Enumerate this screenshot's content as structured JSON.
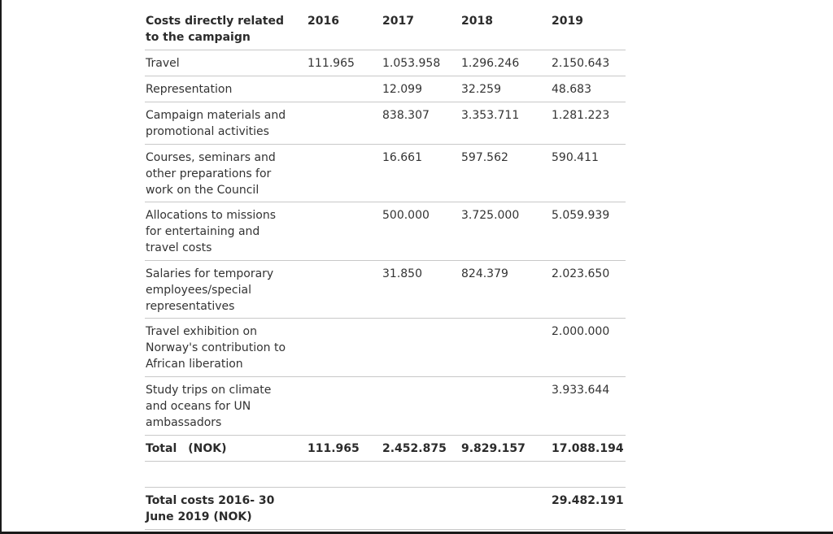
{
  "table": {
    "header": {
      "label": "Costs directly related to the campaign",
      "years": [
        "2016",
        "2017",
        "2018",
        "2019"
      ]
    },
    "rows": [
      {
        "label": "Travel",
        "v2016": "111.965",
        "v2017": "1.053.958",
        "v2018": "1.296.246",
        "v2019": "2.150.643"
      },
      {
        "label": "Representation",
        "v2016": "",
        "v2017": "12.099",
        "v2018": "32.259",
        "v2019": "48.683"
      },
      {
        "label": "Campaign materials and promotional activities",
        "v2016": "",
        "v2017": "838.307",
        "v2018": "3.353.711",
        "v2019": "1.281.223"
      },
      {
        "label": "Courses, seminars and other preparations for work on the Council",
        "v2016": "",
        "v2017": "16.661",
        "v2018": "597.562",
        "v2019": "590.411"
      },
      {
        "label": "Allocations to missions for entertaining and travel costs",
        "v2016": "",
        "v2017": "500.000",
        "v2018": "3.725.000",
        "v2019": "5.059.939"
      },
      {
        "label": "Salaries for temporary employees/special representatives",
        "v2016": "",
        "v2017": "31.850",
        "v2018": "824.379",
        "v2019": "2.023.650"
      },
      {
        "label": "Travel exhibition on Norway's contribution to African liberation",
        "v2016": "",
        "v2017": "",
        "v2018": "",
        "v2019": "2.000.000"
      },
      {
        "label": "Study trips on climate and oceans for UN ambassadors",
        "v2016": "",
        "v2017": "",
        "v2018": "",
        "v2019": "3.933.644"
      }
    ],
    "total": {
      "label_word": "Total",
      "label_unit": "(NOK)",
      "v2016": "111.965",
      "v2017": "2.452.875",
      "v2018": "9.829.157",
      "v2019": "17.088.194"
    },
    "grand_total": {
      "label": "Total costs 2016- 30 June 2019 (NOK)",
      "v2019": "29.482.191"
    }
  }
}
